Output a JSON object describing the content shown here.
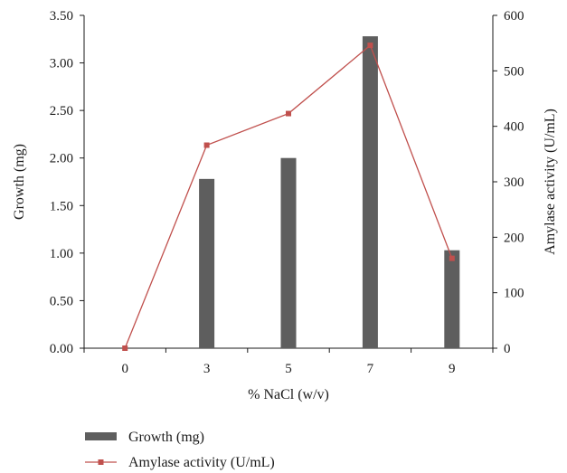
{
  "chart_data": {
    "type": "bar",
    "categories": [
      "0",
      "3",
      "5",
      "7",
      "9"
    ],
    "xlabel": "% NaCl (w/v)",
    "ylabel": "Growth (mg)",
    "y2label": "Amylase activity (U/mL)",
    "ylim": [
      0,
      3.5
    ],
    "y2lim": [
      0,
      600
    ],
    "yticks": [
      "0.00",
      "0.50",
      "1.00",
      "1.50",
      "2.00",
      "2.50",
      "3.00",
      "3.50"
    ],
    "y2ticks": [
      "0",
      "100",
      "200",
      "300",
      "400",
      "500",
      "600"
    ],
    "grid": false,
    "legend_position": "bottom-left",
    "series": [
      {
        "name": "Growth (mg)",
        "type": "bar",
        "axis": "left",
        "color": "#5e5e5e",
        "values": [
          0,
          1.78,
          2.0,
          3.28,
          1.03
        ]
      },
      {
        "name": "Amylase activity (U/mL)",
        "type": "line",
        "axis": "right",
        "color": "#c0504d",
        "values": [
          0,
          366,
          423,
          546,
          162
        ]
      }
    ]
  }
}
